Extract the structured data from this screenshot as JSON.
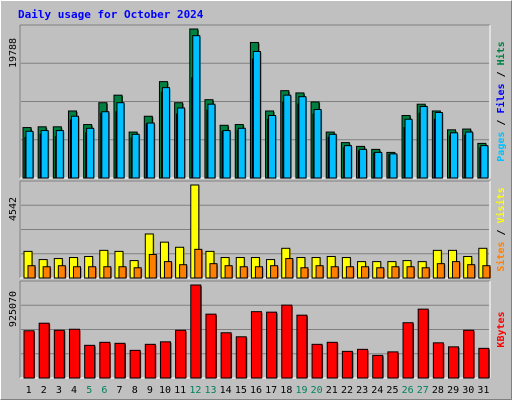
{
  "chart_data": {
    "type": "bar",
    "title": "Daily usage for October 2024",
    "categories": [
      "1",
      "2",
      "3",
      "4",
      "5",
      "6",
      "7",
      "8",
      "9",
      "10",
      "11",
      "12",
      "13",
      "14",
      "15",
      "16",
      "17",
      "18",
      "19",
      "20",
      "21",
      "22",
      "23",
      "24",
      "25",
      "26",
      "27",
      "28",
      "29",
      "30",
      "31"
    ],
    "weekend_days": [
      "5",
      "6",
      "12",
      "13",
      "19",
      "20",
      "26",
      "27"
    ],
    "panels": [
      {
        "name": "hits_files_pages",
        "ymax_label": "19788",
        "ylim": [
          0,
          19788
        ],
        "right_label_parts": [
          {
            "text": "Pages",
            "color": "#00C0FF"
          },
          {
            "text": " / ",
            "color": "#000000"
          },
          {
            "text": "Files",
            "color": "#0000FF"
          },
          {
            "text": " / ",
            "color": "#000000"
          },
          {
            "text": "Hits",
            "color": "#008040"
          }
        ],
        "series": [
          {
            "name": "Hits",
            "color": "#008040",
            "values": [
              6700,
              6800,
              6800,
              8900,
              7100,
              10000,
              11000,
              6100,
              8200,
              12800,
              10000,
              19788,
              10400,
              7000,
              7100,
              18000,
              8900,
              11600,
              11300,
              10100,
              6100,
              4700,
              4200,
              3800,
              3400,
              8300,
              9800,
              8900,
              6400,
              6500,
              4600
            ]
          },
          {
            "name": "Files",
            "color": "#0000FF",
            "values": [
              5400,
              5800,
              5500,
              7700,
              6000,
              8600,
              8800,
              5300,
              7200,
              11400,
              8500,
              13300,
              9000,
              6200,
              6300,
              15800,
              7800,
              10100,
              9800,
              8500,
              5400,
              4000,
              3600,
              3300,
              3100,
              6700,
              8600,
              7800,
              5600,
              5700,
              4000
            ]
          },
          {
            "name": "Pages",
            "color": "#00C0FF",
            "values": [
              6200,
              6300,
              6300,
              8200,
              6600,
              8800,
              10000,
              5800,
              7300,
              12000,
              9300,
              18900,
              9800,
              6300,
              6600,
              16800,
              8300,
              11000,
              10800,
              9100,
              5800,
              4300,
              3800,
              3400,
              3200,
              7800,
              9500,
              8700,
              6000,
              6100,
              4300
            ]
          }
        ]
      },
      {
        "name": "visits_sites",
        "ymax_label": "4542",
        "ylim": [
          0,
          4542
        ],
        "right_label_parts": [
          {
            "text": "Sites",
            "color": "#FF8000"
          },
          {
            "text": " / ",
            "color": "#000000"
          },
          {
            "text": "Visits",
            "color": "#FFFF00"
          }
        ],
        "series": [
          {
            "name": "Visits",
            "color": "#FFFF00",
            "values": [
              1300,
              900,
              950,
              1000,
              1050,
              1350,
              1300,
              850,
              2150,
              1750,
              1500,
              4542,
              1300,
              1000,
              1000,
              1000,
              900,
              1450,
              1000,
              1000,
              1050,
              1000,
              800,
              800,
              800,
              850,
              800,
              1350,
              1350,
              1050,
              1450
            ]
          },
          {
            "name": "Sites",
            "color": "#FF8000",
            "values": [
              600,
              550,
              600,
              550,
              550,
              550,
              550,
              500,
              1150,
              800,
              650,
              1400,
              700,
              600,
              550,
              550,
              600,
              950,
              500,
              600,
              550,
              550,
              550,
              500,
              550,
              550,
              500,
              700,
              800,
              650,
              600
            ]
          }
        ]
      },
      {
        "name": "kbytes",
        "ymax_label": "925070",
        "ylim": [
          0,
          925070
        ],
        "right_label_parts": [
          {
            "text": "KBytes",
            "color": "#FF0000"
          }
        ],
        "series": [
          {
            "name": "KBytes",
            "color": "#FF0000",
            "values": [
              470000,
              545000,
              475000,
              485000,
              325000,
              355000,
              345000,
              275000,
              335000,
              360000,
              475000,
              925070,
              635000,
              450000,
              410000,
              660000,
              655000,
              725000,
              625000,
              335000,
              355000,
              265000,
              285000,
              225000,
              260000,
              550000,
              685000,
              350000,
              310000,
              475000,
              295000
            ]
          }
        ]
      }
    ]
  }
}
